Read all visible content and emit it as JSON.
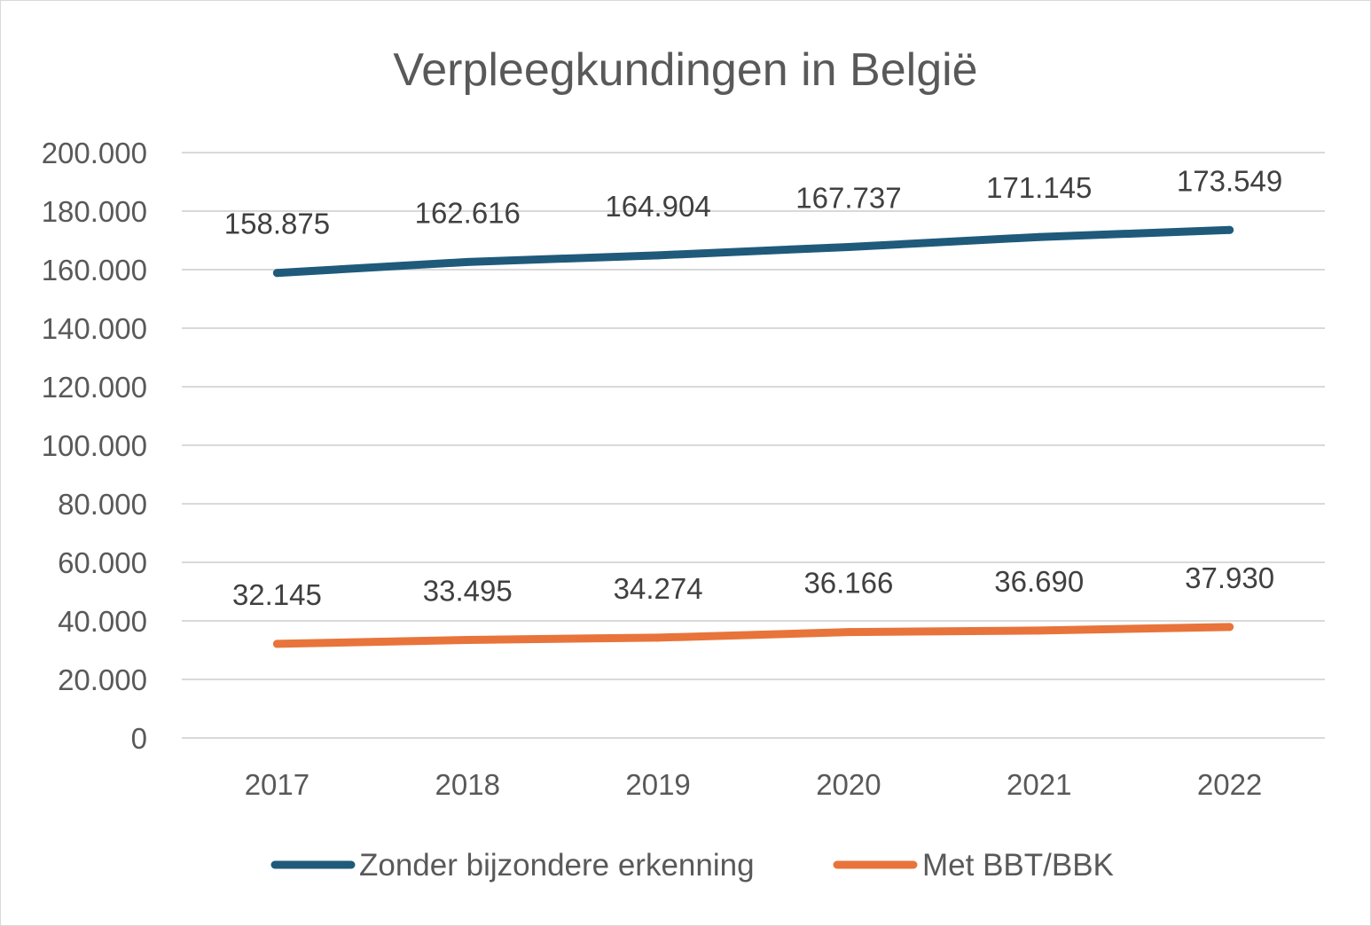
{
  "chart_data": {
    "type": "line",
    "title": "Verpleegkundingen in België",
    "categories": [
      "2017",
      "2018",
      "2019",
      "2020",
      "2021",
      "2022"
    ],
    "series": [
      {
        "name": "Zonder bijzondere erkenning",
        "values": [
          158875,
          162616,
          164904,
          167737,
          171145,
          173549
        ],
        "labels": [
          "158.875",
          "162.616",
          "164.904",
          "167.737",
          "171.145",
          "173.549"
        ],
        "color": "#1f5a7a"
      },
      {
        "name": "Met BBT/BBK",
        "values": [
          32145,
          33495,
          34274,
          36166,
          36690,
          37930
        ],
        "labels": [
          "32.145",
          "33.495",
          "34.274",
          "36.166",
          "36.690",
          "37.930"
        ],
        "color": "#e8743b"
      }
    ],
    "ylim": [
      0,
      200000
    ],
    "yticks": [
      {
        "value": 0,
        "label": "0"
      },
      {
        "value": 20000,
        "label": "20.000"
      },
      {
        "value": 40000,
        "label": "40.000"
      },
      {
        "value": 60000,
        "label": "60.000"
      },
      {
        "value": 80000,
        "label": "80.000"
      },
      {
        "value": 100000,
        "label": "100.000"
      },
      {
        "value": 120000,
        "label": "120.000"
      },
      {
        "value": 140000,
        "label": "140.000"
      },
      {
        "value": 160000,
        "label": "160.000"
      },
      {
        "value": 180000,
        "label": "180.000"
      },
      {
        "value": 200000,
        "label": "200.000"
      }
    ],
    "grid": true,
    "legend": "bottom"
  }
}
